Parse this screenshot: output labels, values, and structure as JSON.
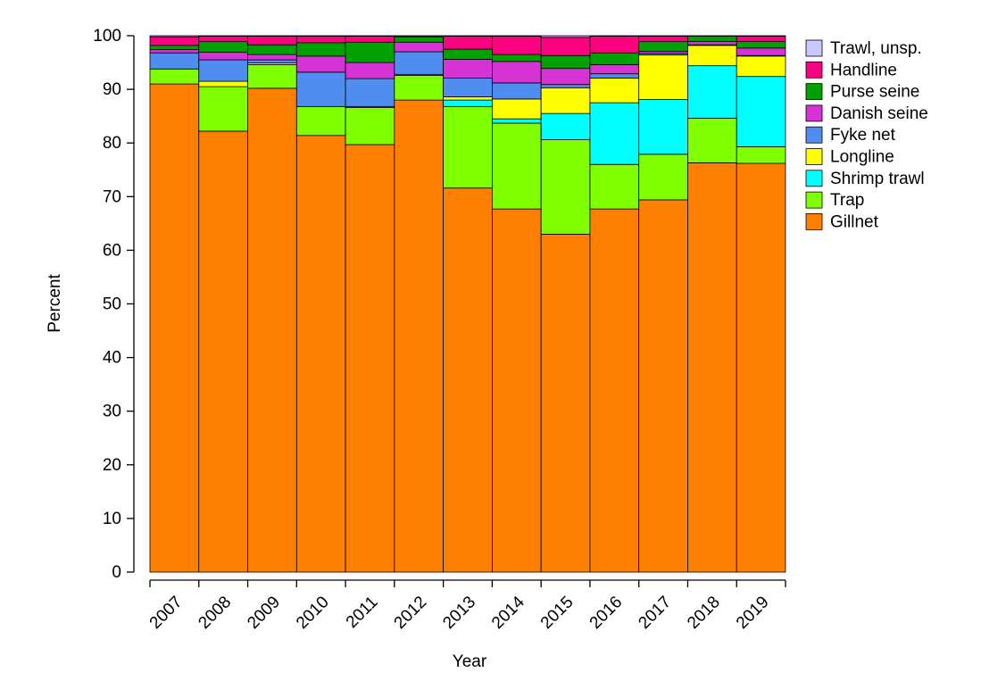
{
  "chart_data": {
    "type": "stacked-bar",
    "x_label": "Year",
    "y_label": "Percent",
    "categories": [
      "2007",
      "2008",
      "2009",
      "2010",
      "2011",
      "2012",
      "2013",
      "2014",
      "2015",
      "2016",
      "2017",
      "2018",
      "2019"
    ],
    "ylim": [
      0,
      100
    ],
    "yticks": [
      0,
      10,
      20,
      30,
      40,
      50,
      60,
      70,
      80,
      90,
      100
    ],
    "legend": "right",
    "series": [
      {
        "name": "Gillnet",
        "color": "#ff8000",
        "values": [
          91,
          82.2,
          90.2,
          81.4,
          79.7,
          88,
          71.6,
          67.7,
          63,
          67.7,
          69.4,
          76.3,
          76.2
        ]
      },
      {
        "name": "Trap",
        "color": "#80ff00",
        "values": [
          2.8,
          8.3,
          4.4,
          5.4,
          6.9,
          4.6,
          15.2,
          16,
          17.6,
          8.3,
          8.5,
          8.3,
          3.1
        ]
      },
      {
        "name": "Shrimp trawl",
        "color": "#00ffff",
        "values": [
          0,
          0,
          0,
          0,
          0,
          0,
          1.2,
          0.8,
          4.9,
          11.5,
          10.2,
          9.8,
          13.1
        ]
      },
      {
        "name": "Longline",
        "color": "#ffff00",
        "values": [
          0,
          1,
          0.3,
          0,
          0.2,
          0.2,
          0.6,
          3.7,
          4.8,
          4.6,
          8.3,
          3.8,
          3.8
        ]
      },
      {
        "name": "Fyke net",
        "color": "#4f8ef0",
        "values": [
          3,
          4,
          0.6,
          6.4,
          5.2,
          4.2,
          3.5,
          3,
          0.6,
          0.8,
          0.3,
          0.1,
          0.1
        ]
      },
      {
        "name": "Danish seine",
        "color": "#d633d6",
        "values": [
          0.6,
          1.4,
          1,
          3,
          3,
          1.8,
          3.5,
          4,
          3,
          1.7,
          0.4,
          0.6,
          1.4
        ]
      },
      {
        "name": "Purse seine",
        "color": "#00a000",
        "values": [
          0.8,
          2,
          1.8,
          2.5,
          3.8,
          1,
          1.9,
          1.3,
          2.4,
          2.2,
          1.8,
          1,
          1.2
        ]
      },
      {
        "name": "Handline",
        "color": "#ff0080",
        "values": [
          1.6,
          1,
          1.6,
          1.2,
          1.1,
          0.1,
          2.4,
          3.4,
          3.4,
          3.1,
          1,
          0,
          1
        ]
      },
      {
        "name": "Trawl, unsp.",
        "color": "#c8c8ff",
        "values": [
          0.2,
          0.1,
          0.1,
          0.1,
          0.1,
          0.1,
          0.1,
          0.1,
          0.3,
          0.1,
          0.1,
          0.1,
          0.1
        ]
      }
    ]
  }
}
